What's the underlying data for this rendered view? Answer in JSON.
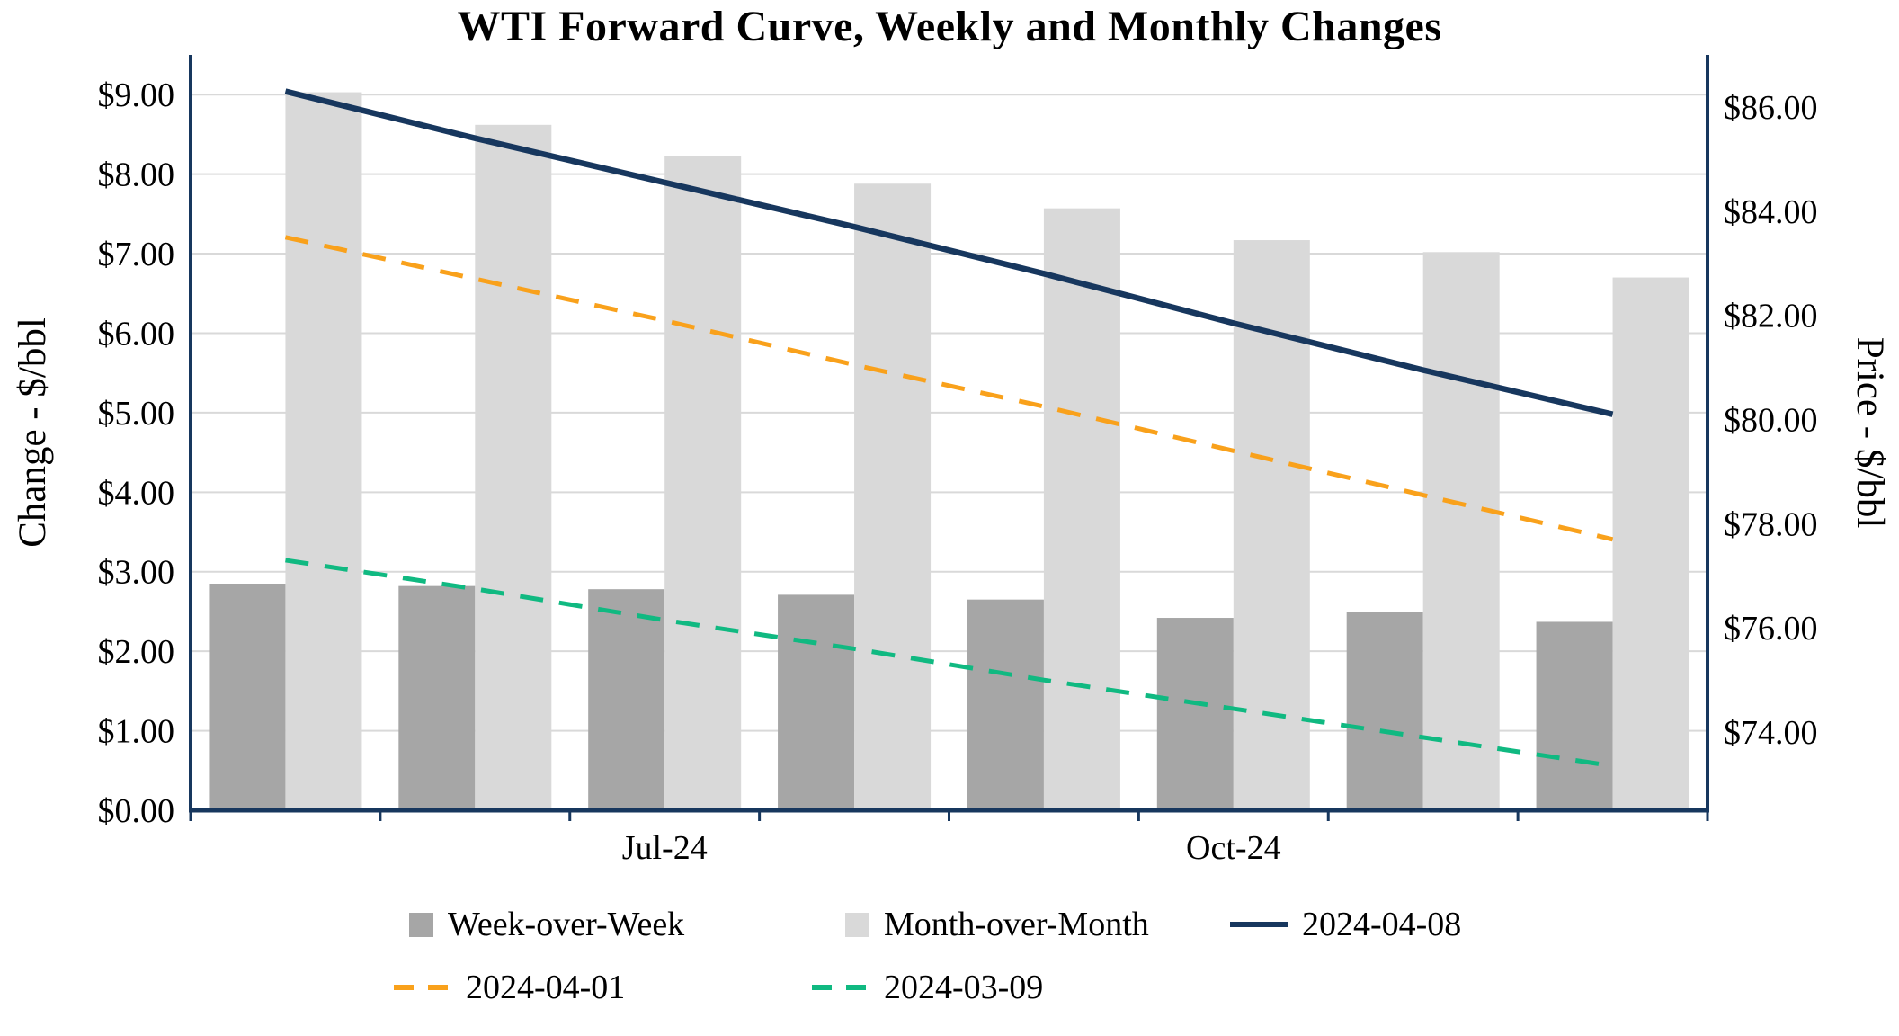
{
  "title": "WTI Forward Curve, Weekly and Monthly Changes",
  "colors": {
    "axis": "#17375E",
    "grid": "#D9D9D9",
    "background": "#FFFFFF",
    "bar_week_over_week": "#A6A6A6",
    "bar_month_over_month": "#D9D9D9",
    "line_2024_04_08": "#17375E",
    "line_2024_04_01": "#F9A11B",
    "line_2024_03_09": "#10B981"
  },
  "left_axis": {
    "label": "Change - $/bbl",
    "ticks": [
      {
        "label": "$0.00",
        "value": 0
      },
      {
        "label": "$1.00",
        "value": 1
      },
      {
        "label": "$2.00",
        "value": 2
      },
      {
        "label": "$3.00",
        "value": 3
      },
      {
        "label": "$4.00",
        "value": 4
      },
      {
        "label": "$5.00",
        "value": 5
      },
      {
        "label": "$6.00",
        "value": 6
      },
      {
        "label": "$7.00",
        "value": 7
      },
      {
        "label": "$8.00",
        "value": 8
      },
      {
        "label": "$9.00",
        "value": 9
      }
    ]
  },
  "right_axis": {
    "label": "Price - $/bbl",
    "ticks": [
      {
        "label": "$74.00",
        "value": 74
      },
      {
        "label": "$76.00",
        "value": 76
      },
      {
        "label": "$78.00",
        "value": 78
      },
      {
        "label": "$80.00",
        "value": 80
      },
      {
        "label": "$82.00",
        "value": 82
      },
      {
        "label": "$84.00",
        "value": 84
      },
      {
        "label": "$86.00",
        "value": 86
      }
    ]
  },
  "x_axis": {
    "tick_labels": [
      {
        "label": "Jul-24",
        "index": 2
      },
      {
        "label": "Oct-24",
        "index": 5
      }
    ]
  },
  "legend": {
    "rows": [
      [
        {
          "label": "Week-over-Week",
          "marker": "square",
          "color": "#A6A6A6"
        },
        {
          "label": "Month-over-Month",
          "marker": "square",
          "color": "#D9D9D9"
        },
        {
          "label": "2024-04-08",
          "marker": "line-solid",
          "color": "#17375E"
        }
      ],
      [
        {
          "label": "2024-04-01",
          "marker": "line-dashed",
          "color": "#F9A11B"
        },
        {
          "label": "2024-03-09",
          "marker": "line-dashed",
          "color": "#10B981"
        }
      ]
    ]
  },
  "chart_data": {
    "type": "bar",
    "combo": "bars on left axis with lines on right axis",
    "title": "WTI Forward Curve, Weekly and Monthly Changes",
    "categories": [
      "",
      "",
      "Jul-24",
      "",
      "",
      "Oct-24",
      "",
      ""
    ],
    "ylabel_left": "Change - $/bbl",
    "ylabel_right": "Price - $/bbl",
    "ylim_left": [
      0,
      9.5
    ],
    "ylim_right": [
      72.5,
      87
    ],
    "grid": true,
    "legend_position": "bottom",
    "bar_series": [
      {
        "name": "Week-over-Week",
        "axis": "left",
        "color": "#A6A6A6",
        "values": [
          2.85,
          2.82,
          2.78,
          2.71,
          2.65,
          2.42,
          2.49,
          2.37
        ]
      },
      {
        "name": "Month-over-Month",
        "axis": "left",
        "color": "#D9D9D9",
        "values": [
          9.03,
          8.62,
          8.23,
          7.88,
          7.57,
          7.17,
          7.02,
          6.7
        ]
      }
    ],
    "line_series": [
      {
        "name": "2024-04-08",
        "axis": "right",
        "color": "#17375E",
        "dash": "solid",
        "values": [
          86.3,
          85.4,
          84.55,
          83.7,
          82.8,
          81.85,
          80.95,
          80.1
        ]
      },
      {
        "name": "2024-04-01",
        "axis": "right",
        "color": "#F9A11B",
        "dash": "dashed",
        "values": [
          83.5,
          82.7,
          81.9,
          81.05,
          80.25,
          79.4,
          78.55,
          77.7
        ]
      },
      {
        "name": "2024-03-09",
        "axis": "right",
        "color": "#10B981",
        "dash": "dashed",
        "values": [
          77.3,
          76.75,
          76.15,
          75.6,
          75.0,
          74.45,
          73.9,
          73.35
        ]
      }
    ]
  }
}
